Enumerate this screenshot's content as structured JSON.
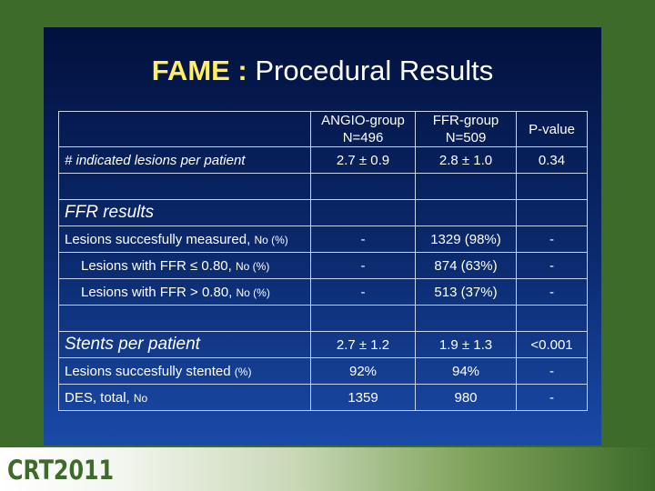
{
  "slide": {
    "title_highlight": "FAME :",
    "title_rest": " Procedural Results"
  },
  "table": {
    "headers": {
      "angio_1": "ANGIO-group",
      "angio_2": "N=496",
      "ffr_1": "FFR-group",
      "ffr_2": "N=509",
      "pvalue": "P-value"
    },
    "rows": {
      "indicated": {
        "label": "# indicated lesions per patient",
        "angio": "2.7 ± 0.9",
        "ffr": "2.8 ± 1.0",
        "p": "0.34"
      },
      "ffr_results": {
        "label": "FFR results"
      },
      "measured": {
        "label": "Lesions succesfully measured,",
        "suffix": "No (%)",
        "angio": "-",
        "ffr": "1329 (98%)",
        "p": "-"
      },
      "le080": {
        "label": "Lesions with FFR ≤ 0.80,",
        "suffix": "No (%)",
        "angio": "-",
        "ffr": "874 (63%)",
        "p": "-"
      },
      "gt080": {
        "label": "Lesions with FFR > 0.80,",
        "suffix": "No (%)",
        "angio": "-",
        "ffr": "513 (37%)",
        "p": "-"
      },
      "stents": {
        "label": "Stents per patient",
        "angio": "2.7 ± 1.2",
        "ffr": "1.9 ± 1.3",
        "p": "<0.001"
      },
      "stented": {
        "label": "Lesions succesfully stented",
        "suffix": "(%)",
        "angio": "92%",
        "ffr": "94%",
        "p": "-"
      },
      "des": {
        "label": "DES, total,",
        "suffix": "No",
        "angio": "1359",
        "ffr": "980",
        "p": "-"
      }
    }
  },
  "footer": {
    "logo": "CRT2011"
  }
}
